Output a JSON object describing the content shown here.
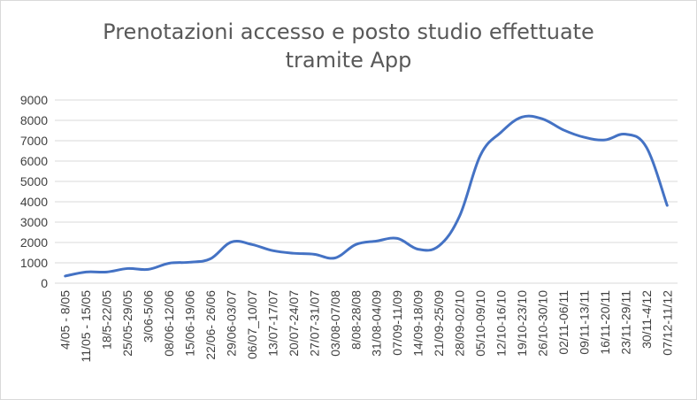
{
  "chart_data": {
    "type": "line",
    "title": [
      "Prenotazioni accesso e posto studio effettuate",
      "tramite App"
    ],
    "xlabel": "",
    "ylabel": "",
    "ylim": [
      0,
      9000
    ],
    "yticks": [
      0,
      1000,
      2000,
      3000,
      4000,
      5000,
      6000,
      7000,
      8000,
      9000
    ],
    "grid": true,
    "legend": "none",
    "line_color": "#4472c4",
    "categories": [
      "4/05 - 8/05",
      "11/05 - 15/05",
      "18/5-22/05",
      "25/05-29/05",
      "3/06-5/06",
      "08/06-12/06",
      "15/06-19/06",
      "22/06- 26/06",
      "29/06-03/07",
      "06/07_10/07",
      "13/07-17/07",
      "20/07-24/07",
      "27/07-31/07",
      "03/08-07/08",
      "8/08-28/08",
      "31/08-04/09",
      "07/09-11/09",
      "14/09-18/09",
      "21/09-25/09",
      "28/09-02/10",
      "05/10-09/10",
      "12/10-16/10",
      "19/10-23/10",
      "26/10-30/10",
      "02/11-06/11",
      "09/11-13/11",
      "16/11-20/11",
      "23/11-29/11",
      "30/11-4/12",
      "07/12-11/12"
    ],
    "values": [
      350,
      550,
      550,
      720,
      680,
      980,
      1030,
      1200,
      2020,
      1900,
      1600,
      1470,
      1420,
      1240,
      1900,
      2070,
      2200,
      1670,
      1830,
      3300,
      6280,
      7420,
      8160,
      8070,
      7530,
      7170,
      7040,
      7320,
      6680,
      3820
    ]
  }
}
